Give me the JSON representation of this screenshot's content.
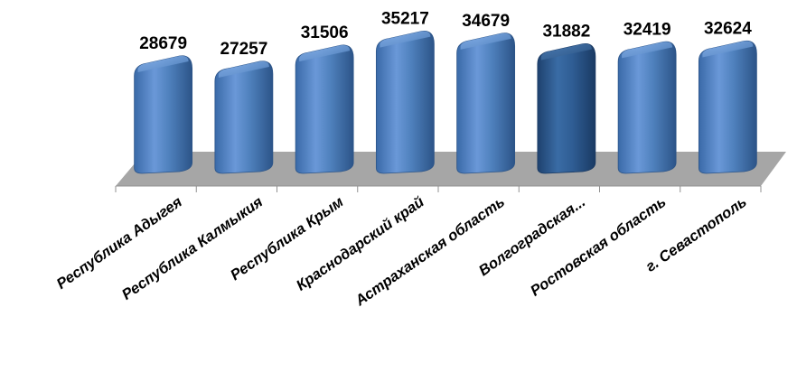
{
  "chart_data": {
    "type": "bar",
    "style": "3d-cylinder",
    "title": "",
    "xlabel": "",
    "ylabel": "",
    "grid": false,
    "legend": "none",
    "categories": [
      "Республика Адыгея",
      "Республика Калмыкия",
      "Республика Крым",
      "Краснодарский край",
      "Астраханская область",
      "Волгоградская...",
      "Ростовская область",
      "г. Севастополь"
    ],
    "values": [
      28679,
      27257,
      31506,
      35217,
      34679,
      31882,
      32419,
      32624
    ],
    "colors": {
      "bar": "#4F81BD",
      "bar_highlight": "#2F5D94",
      "floor": "#A6A6A6"
    },
    "highlight_index": 5
  }
}
